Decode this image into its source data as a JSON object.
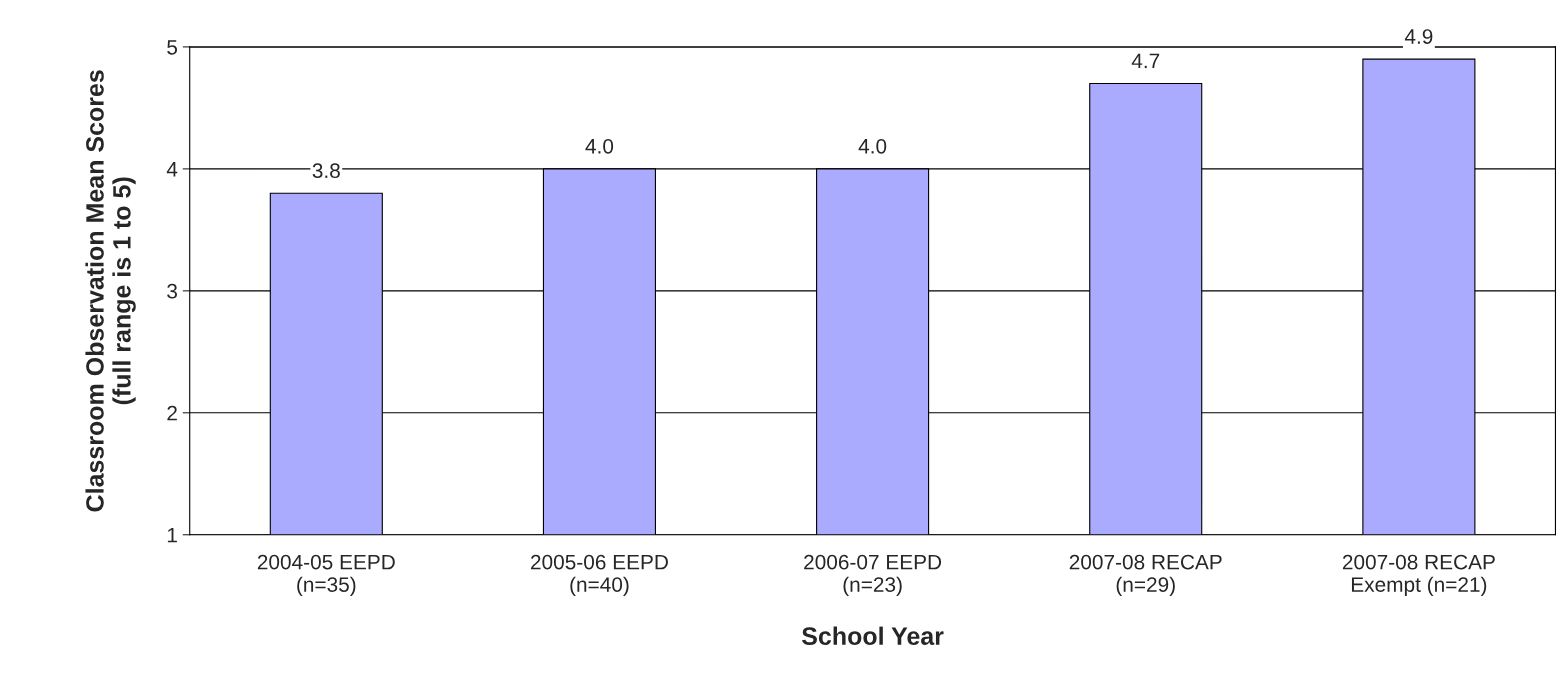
{
  "chart_data": {
    "type": "bar",
    "xlabel": "School Year",
    "ylabel": "Classroom Observation Mean Scores\n(full range is 1 to 5)",
    "categories": [
      "2004-05 EEPD\n(n=35)",
      "2005-06 EEPD\n(n=40)",
      "2006-07 EEPD\n(n=23)",
      "2007-08 RECAP\n(n=29)",
      "2007-08 RECAP\nExempt (n=21)"
    ],
    "values": [
      3.8,
      4.0,
      4.0,
      4.7,
      4.9
    ],
    "color": "#aaaaff",
    "ylim": [
      1,
      5
    ],
    "yticks": [
      1,
      2,
      3,
      4,
      5
    ],
    "grid": "y",
    "value_labels": [
      "3.8",
      "4.0",
      "4.0",
      "4.7",
      "4.9"
    ]
  }
}
